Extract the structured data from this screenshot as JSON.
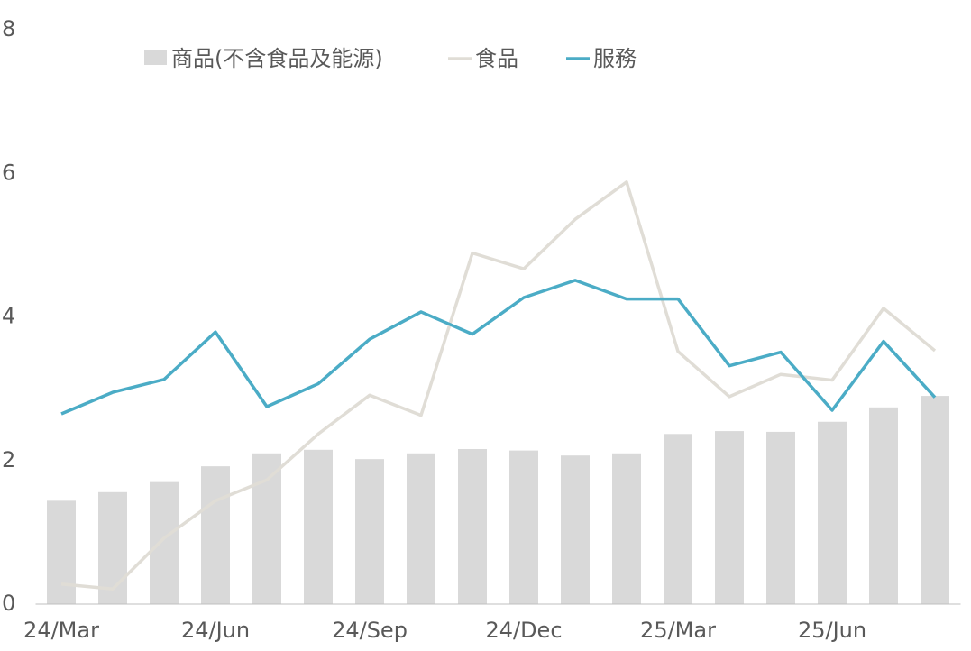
{
  "chart_data": {
    "type": "bar",
    "categories": [
      "24/Mar",
      null,
      null,
      "24/Jun",
      null,
      null,
      "24/Sep",
      null,
      null,
      "24/Dec",
      null,
      null,
      "25/Mar",
      null,
      null,
      "25/Jun",
      null,
      null
    ],
    "series": [
      {
        "name": "商品(不含食品及能源)",
        "type": "bar",
        "color": "#d9d9d9",
        "values": [
          1.44,
          1.56,
          1.7,
          1.92,
          2.1,
          2.15,
          2.02,
          2.1,
          2.16,
          2.14,
          2.07,
          2.1,
          2.37,
          2.41,
          2.4,
          2.54,
          2.74,
          2.9
        ]
      },
      {
        "name": "食品",
        "type": "line",
        "color": "#e0ddd6",
        "values": [
          0.28,
          0.21,
          0.92,
          1.44,
          1.73,
          2.37,
          2.91,
          2.63,
          4.89,
          4.67,
          5.36,
          5.88,
          3.52,
          2.89,
          3.2,
          3.12,
          4.12,
          3.53
        ]
      },
      {
        "name": "服務",
        "type": "line",
        "color": "#4bacc6",
        "values": [
          2.65,
          2.95,
          3.13,
          3.79,
          2.75,
          3.07,
          3.69,
          4.07,
          3.76,
          4.27,
          4.51,
          4.25,
          4.25,
          3.32,
          3.51,
          2.7,
          3.66,
          2.88
        ]
      }
    ],
    "ylim": [
      0,
      8
    ],
    "yticks": [
      0,
      2,
      4,
      6,
      8
    ],
    "grid": false
  }
}
